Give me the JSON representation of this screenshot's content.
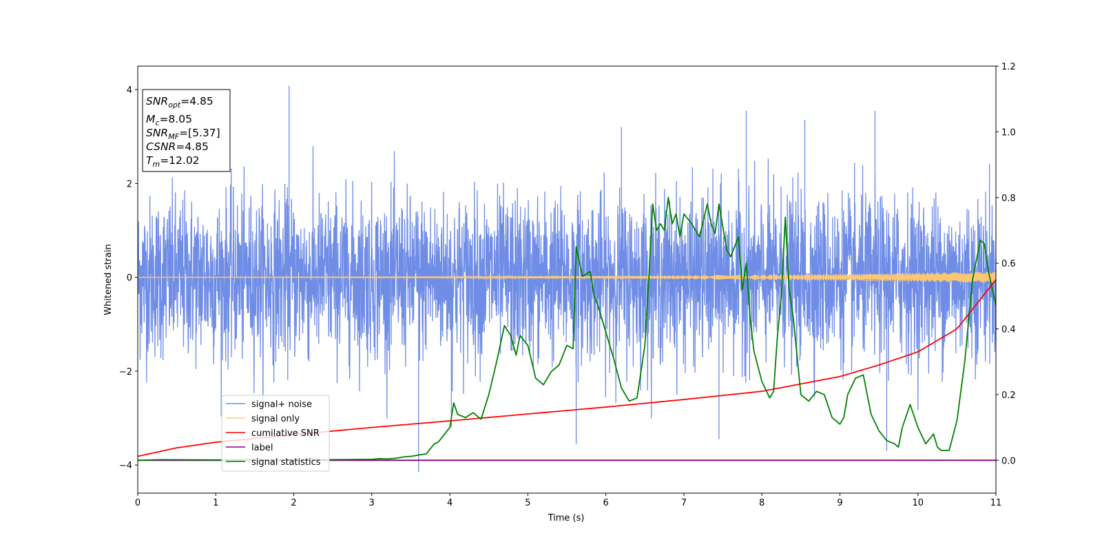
{
  "chart_data": {
    "type": "line",
    "xlabel": "Time (s)",
    "ylabel": "Whitened strain",
    "xlim": [
      0,
      11
    ],
    "ylim_left": [
      -4.6,
      4.5
    ],
    "ylim_right": [
      -0.1,
      1.2
    ],
    "xticks": [
      "0",
      "1",
      "2",
      "3",
      "4",
      "5",
      "6",
      "7",
      "8",
      "9",
      "10",
      "11"
    ],
    "yticks_left": [
      "−4",
      "−2",
      "0",
      "2",
      "4"
    ],
    "yticks_right": [
      "0.0",
      "0.2",
      "0.4",
      "0.6",
      "0.8",
      "1.0",
      "1.2"
    ],
    "grid": false,
    "legend_position": "lower-left",
    "legend": [
      {
        "label": "signal+ noise",
        "color": "#6f8de6"
      },
      {
        "label": "signal only",
        "color": "#ffc870"
      },
      {
        "label": "cumilative SNR",
        "color": "#ff0000"
      },
      {
        "label": "label",
        "color": "#800080"
      },
      {
        "label": "signal statistics",
        "color": "#008000"
      }
    ],
    "info_box": {
      "snr_opt": {
        "symbol": "SNR",
        "sub": "opt",
        "value": "=4.85"
      },
      "mc": {
        "symbol": "M",
        "sub": "c",
        "value": "=8.05"
      },
      "snr_mf": {
        "symbol": "SNR",
        "sub": "MF",
        "value": "=[5.37]"
      },
      "csnr": {
        "symbol": "CSNR",
        "sub": "",
        "value": "=4.85"
      },
      "tm": {
        "symbol": "T",
        "sub": "m",
        "value": "=12.02"
      }
    },
    "series": [
      {
        "name": "signal+ noise",
        "axis": "left",
        "color": "#6f8de6",
        "description": "whitened strain noise, typical band about -1.8 to 1.8, peaks near 4.1 and -4.2",
        "noise_level": 0.85,
        "peaks": [
          {
            "x": 1.94,
            "y": 4.08
          },
          {
            "x": 3.6,
            "y": -4.15
          },
          {
            "x": 5.62,
            "y": -3.55
          },
          {
            "x": 9.6,
            "y": -3.7
          },
          {
            "x": 7.8,
            "y": 3.55
          },
          {
            "x": 9.45,
            "y": 3.55
          },
          {
            "x": 6.2,
            "y": 3.2
          },
          {
            "x": 8.55,
            "y": 3.35
          },
          {
            "x": 4.02,
            "y": -3.2
          },
          {
            "x": 7.45,
            "y": -3.45
          }
        ]
      },
      {
        "name": "signal only",
        "axis": "left",
        "color": "#ffc870",
        "description": "chirp with amplitude growing from ~0.01 to ~0.12 at 11 s",
        "amplitude_start": 0.01,
        "amplitude_end": 0.12
      },
      {
        "name": "cumilative SNR",
        "axis": "right",
        "color": "#ff0000",
        "x": [
          0,
          0.5,
          1,
          2,
          3,
          4,
          5,
          6,
          7,
          8,
          9,
          9.5,
          10,
          10.5,
          11
        ],
        "y": [
          0.012,
          0.038,
          0.055,
          0.078,
          0.1,
          0.12,
          0.141,
          0.162,
          0.185,
          0.21,
          0.255,
          0.29,
          0.33,
          0.4,
          0.55
        ]
      },
      {
        "name": "label",
        "axis": "right",
        "color": "#800080",
        "x": [
          0,
          11
        ],
        "y": [
          0,
          0
        ]
      },
      {
        "name": "signal statistics",
        "axis": "right",
        "color": "#008000",
        "x": [
          0,
          0.3,
          1,
          2,
          2.5,
          3,
          3.1,
          3.2,
          3.3,
          3.4,
          3.5,
          3.6,
          3.7,
          3.8,
          3.85,
          3.9,
          4.0,
          4.05,
          4.1,
          4.2,
          4.3,
          4.4,
          4.5,
          4.6,
          4.7,
          4.78,
          4.85,
          4.9,
          5.0,
          5.1,
          5.2,
          5.3,
          5.4,
          5.5,
          5.58,
          5.62,
          5.7,
          5.8,
          5.85,
          5.9,
          6.0,
          6.1,
          6.2,
          6.3,
          6.4,
          6.5,
          6.55,
          6.6,
          6.65,
          6.7,
          6.75,
          6.8,
          6.85,
          6.9,
          6.95,
          7.0,
          7.1,
          7.2,
          7.3,
          7.35,
          7.4,
          7.45,
          7.5,
          7.55,
          7.6,
          7.7,
          7.75,
          7.8,
          7.85,
          7.9,
          8.0,
          8.1,
          8.15,
          8.2,
          8.25,
          8.3,
          8.35,
          8.4,
          8.5,
          8.6,
          8.7,
          8.8,
          8.9,
          9.0,
          9.05,
          9.1,
          9.2,
          9.3,
          9.4,
          9.5,
          9.6,
          9.7,
          9.75,
          9.8,
          9.9,
          10.0,
          10.1,
          10.2,
          10.25,
          10.3,
          10.4,
          10.5,
          10.6,
          10.7,
          10.8,
          10.85,
          10.9,
          11.0
        ],
        "y": [
          0.0,
          0.002,
          0.001,
          0.001,
          0.002,
          0.003,
          0.005,
          0.004,
          0.006,
          0.01,
          0.012,
          0.016,
          0.02,
          0.05,
          0.055,
          0.07,
          0.1,
          0.175,
          0.14,
          0.13,
          0.145,
          0.125,
          0.2,
          0.3,
          0.41,
          0.38,
          0.32,
          0.38,
          0.35,
          0.25,
          0.23,
          0.27,
          0.29,
          0.35,
          0.34,
          0.65,
          0.56,
          0.575,
          0.5,
          0.47,
          0.39,
          0.31,
          0.22,
          0.18,
          0.19,
          0.35,
          0.55,
          0.78,
          0.7,
          0.72,
          0.7,
          0.8,
          0.72,
          0.75,
          0.68,
          0.75,
          0.72,
          0.68,
          0.78,
          0.72,
          0.69,
          0.78,
          0.71,
          0.64,
          0.62,
          0.68,
          0.52,
          0.6,
          0.43,
          0.33,
          0.24,
          0.19,
          0.21,
          0.38,
          0.5,
          0.74,
          0.52,
          0.44,
          0.2,
          0.18,
          0.21,
          0.2,
          0.13,
          0.11,
          0.13,
          0.2,
          0.25,
          0.26,
          0.14,
          0.09,
          0.06,
          0.05,
          0.04,
          0.1,
          0.17,
          0.1,
          0.05,
          0.08,
          0.04,
          0.03,
          0.03,
          0.12,
          0.3,
          0.55,
          0.67,
          0.66,
          0.58,
          0.47
        ]
      }
    ]
  }
}
